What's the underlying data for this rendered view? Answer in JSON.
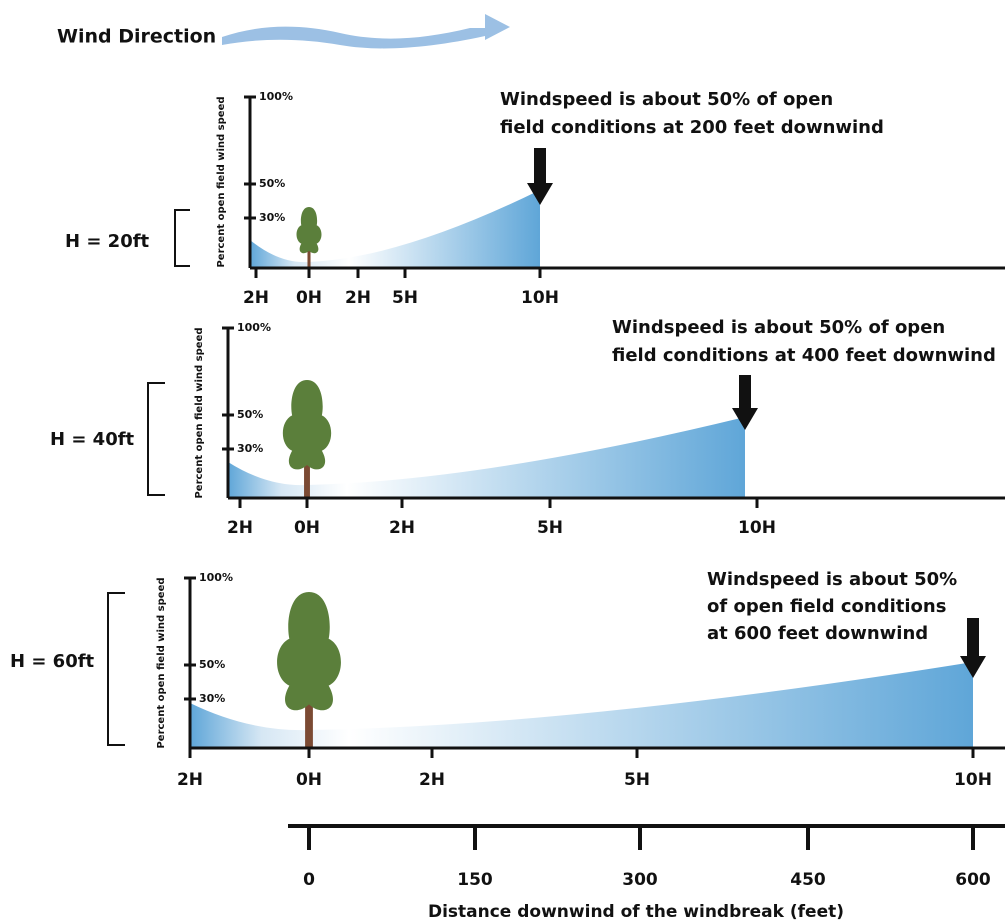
{
  "wind_label": "Wind Direction",
  "panels": [
    {
      "height_label": "H = 20ft",
      "y_axis_label": "Percent open field wind speed",
      "y_ticks": [
        "100%",
        "50%",
        "30%"
      ],
      "x_ticks": [
        "2H",
        "0H",
        "2H",
        "5H",
        "10H"
      ],
      "annotation": [
        "Windspeed is about 50% of open",
        "field conditions at 200 feet downwind"
      ]
    },
    {
      "height_label": "H = 40ft",
      "y_axis_label": "Percent open field wind speed",
      "y_ticks": [
        "100%",
        "50%",
        "30%"
      ],
      "x_ticks": [
        "2H",
        "0H",
        "2H",
        "5H",
        "10H"
      ],
      "annotation": [
        "Windspeed is about 50% of open",
        "field conditions at 400 feet downwind"
      ]
    },
    {
      "height_label": "H = 60ft",
      "y_axis_label": "Percent open field wind speed",
      "y_ticks": [
        "100%",
        "50%",
        "30%"
      ],
      "x_ticks": [
        "2H",
        "0H",
        "2H",
        "5H",
        "10H"
      ],
      "annotation": [
        "Windspeed is about 50%",
        "of open field conditions",
        "at 600 feet downwind"
      ]
    }
  ],
  "distance_axis": {
    "ticks": [
      "0",
      "150",
      "300",
      "450",
      "600"
    ],
    "label": "Distance downwind of the windbreak (feet)"
  }
}
